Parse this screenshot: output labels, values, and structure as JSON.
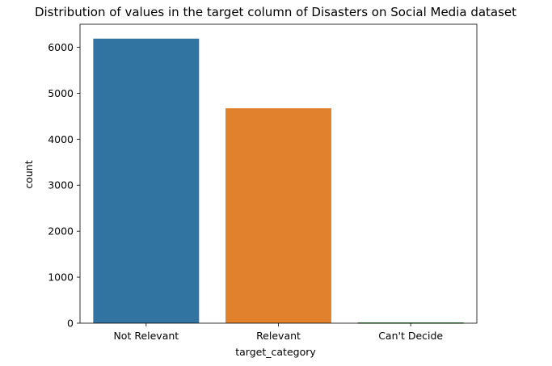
{
  "chart_data": {
    "type": "bar",
    "title": "Distribution of values in the target column of Disasters on Social Media dataset",
    "xlabel": "target_category",
    "ylabel": "count",
    "categories": [
      "Not Relevant",
      "Relevant",
      "Can't Decide"
    ],
    "values": [
      6187,
      4673,
      16
    ],
    "ylim": [
      0,
      6500
    ],
    "yticks": [
      0,
      1000,
      2000,
      3000,
      4000,
      5000,
      6000
    ],
    "colors": [
      "#3274a1",
      "#e1812c",
      "#3a923a"
    ],
    "grid": false,
    "legend": "none"
  }
}
